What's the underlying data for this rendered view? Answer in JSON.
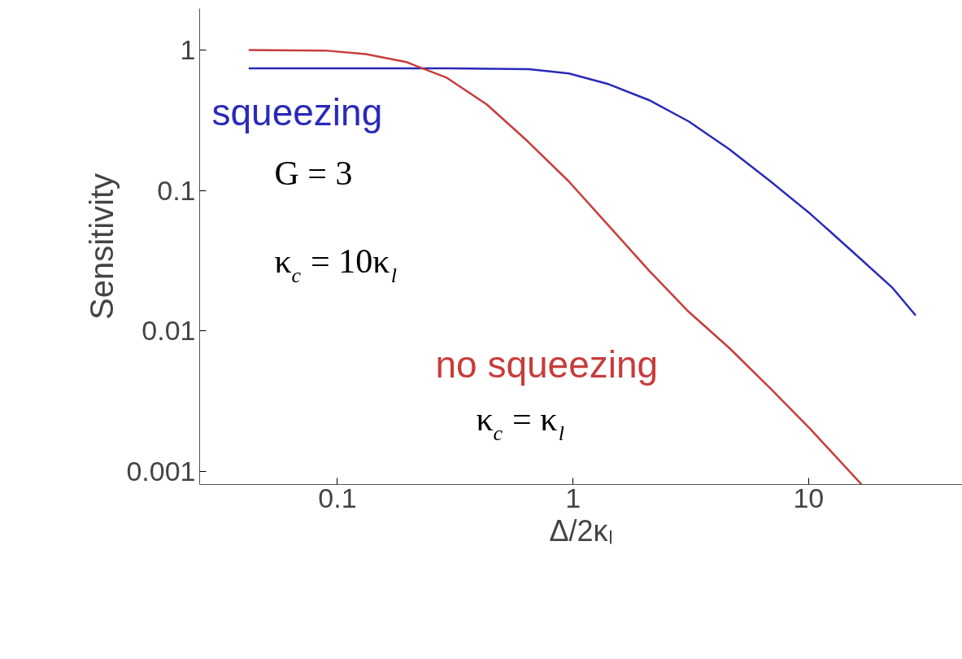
{
  "chart_data": {
    "type": "line",
    "xlabel": "Δ/2κₗ",
    "ylabel": "Sensitivity",
    "log": "xy",
    "grid": false,
    "xlim": [
      0.026,
      45
    ],
    "ylim": [
      0.00081,
      1.97
    ],
    "xticks": [
      0.1,
      1,
      10
    ],
    "yticks": [
      0.001,
      0.01,
      0.1,
      1
    ],
    "series": [
      {
        "name": "squeezing",
        "color": "#2a2ab8",
        "x": [
          0.042,
          0.3,
          0.65,
          0.96,
          1.42,
          2.1,
          3.1,
          4.6,
          6.9,
          10.2,
          15.3,
          22.6,
          28.5
        ],
        "values": [
          0.74,
          0.74,
          0.73,
          0.68,
          0.57,
          0.44,
          0.31,
          0.197,
          0.116,
          0.068,
          0.037,
          0.0205,
          0.0129
        ]
      },
      {
        "name": "no squeezing",
        "color": "#c83c3c",
        "x": [
          0.042,
          0.089,
          0.132,
          0.196,
          0.29,
          0.43,
          0.64,
          0.96,
          1.42,
          2.1,
          3.1,
          4.6,
          6.9,
          10.2,
          16.8
        ],
        "values": [
          1.0,
          0.99,
          0.935,
          0.82,
          0.636,
          0.41,
          0.225,
          0.116,
          0.056,
          0.027,
          0.0137,
          0.0076,
          0.0039,
          0.002,
          0.00081
        ]
      }
    ],
    "annotations": [
      "G = 3",
      "κ$_{c}$ = 10κ$_{l}$",
      "κ$_{c}$ = κ$_{l}$"
    ]
  }
}
